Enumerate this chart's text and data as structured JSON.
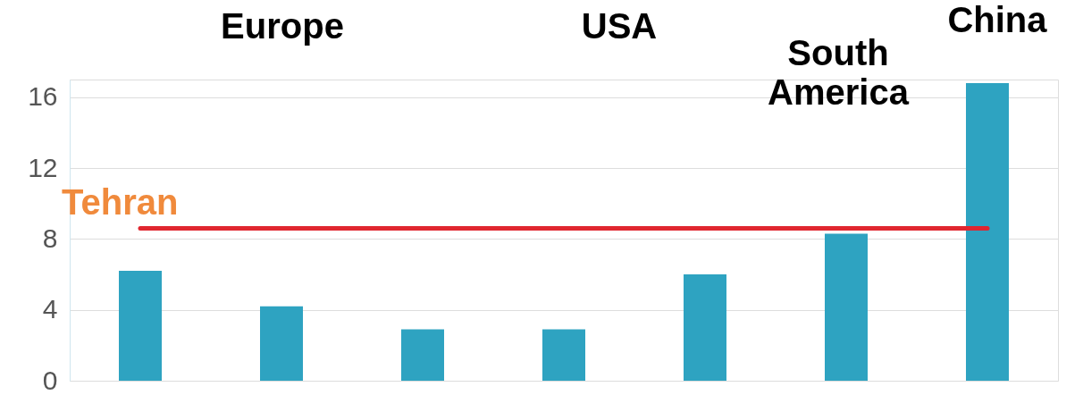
{
  "chart_data": {
    "type": "bar",
    "categories": [
      null,
      null,
      null,
      null,
      null,
      null,
      null
    ],
    "values": [
      6.2,
      4.2,
      2.9,
      2.9,
      6.0,
      8.3,
      16.8
    ],
    "color": "#2ea3c1",
    "series": [
      {
        "type": "line",
        "name": "Tehran",
        "color": "#e0262f",
        "values": [
          8.6,
          8.6,
          8.6,
          8.6,
          8.6,
          8.6,
          8.6
        ]
      }
    ],
    "ylim": [
      0,
      17
    ],
    "yticks": [
      0,
      4,
      8,
      12,
      16
    ],
    "grid": "y",
    "annotations": [
      "Europe",
      "USA",
      "South America",
      "China"
    ]
  }
}
